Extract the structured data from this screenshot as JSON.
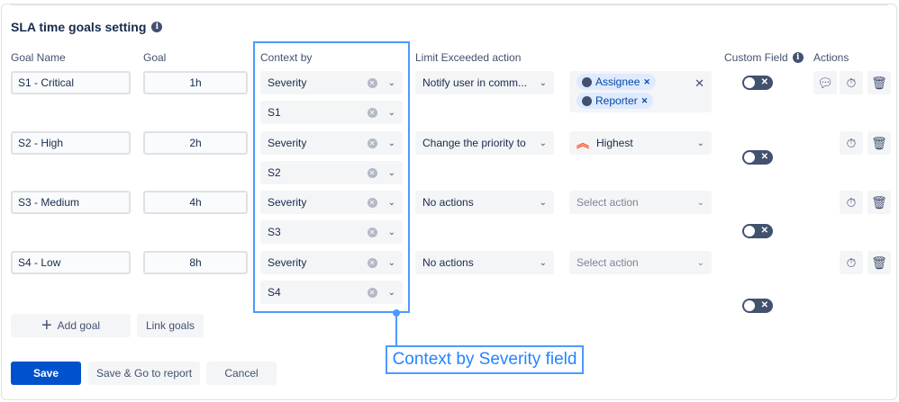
{
  "title": "SLA time goals setting",
  "headers": {
    "goal_name": "Goal Name",
    "goal": "Goal",
    "context_by": "Context by",
    "limit_action": "Limit Exceeded action",
    "custom_field": "Custom Field",
    "actions": "Actions"
  },
  "rows": [
    {
      "name": "S1 - Critical",
      "goal": "1h",
      "context_field": "Severity",
      "context_value": "S1",
      "action": "Notify user in comm...",
      "chips": [
        "Assignee",
        "Reporter"
      ],
      "has_comment": true
    },
    {
      "name": "S2 - High",
      "goal": "2h",
      "context_field": "Severity",
      "context_value": "S2",
      "action": "Change the priority to",
      "target": "Highest",
      "has_comment": false
    },
    {
      "name": "S3 - Medium",
      "goal": "4h",
      "context_field": "Severity",
      "context_value": "S3",
      "action": "No actions",
      "target_placeholder": "Select action",
      "has_comment": false
    },
    {
      "name": "S4 - Low",
      "goal": "8h",
      "context_field": "Severity",
      "context_value": "S4",
      "action": "No actions",
      "target_placeholder": "Select action",
      "has_comment": false
    }
  ],
  "buttons": {
    "add_goal": "Add goal",
    "link_goals": "Link goals",
    "save": "Save",
    "save_report": "Save & Go to report",
    "cancel": "Cancel"
  },
  "callout": "Context by Severity field",
  "colors": {
    "primary": "#0052cc",
    "highlight": "#4c9aff",
    "priority_highest": "#ff5630"
  }
}
